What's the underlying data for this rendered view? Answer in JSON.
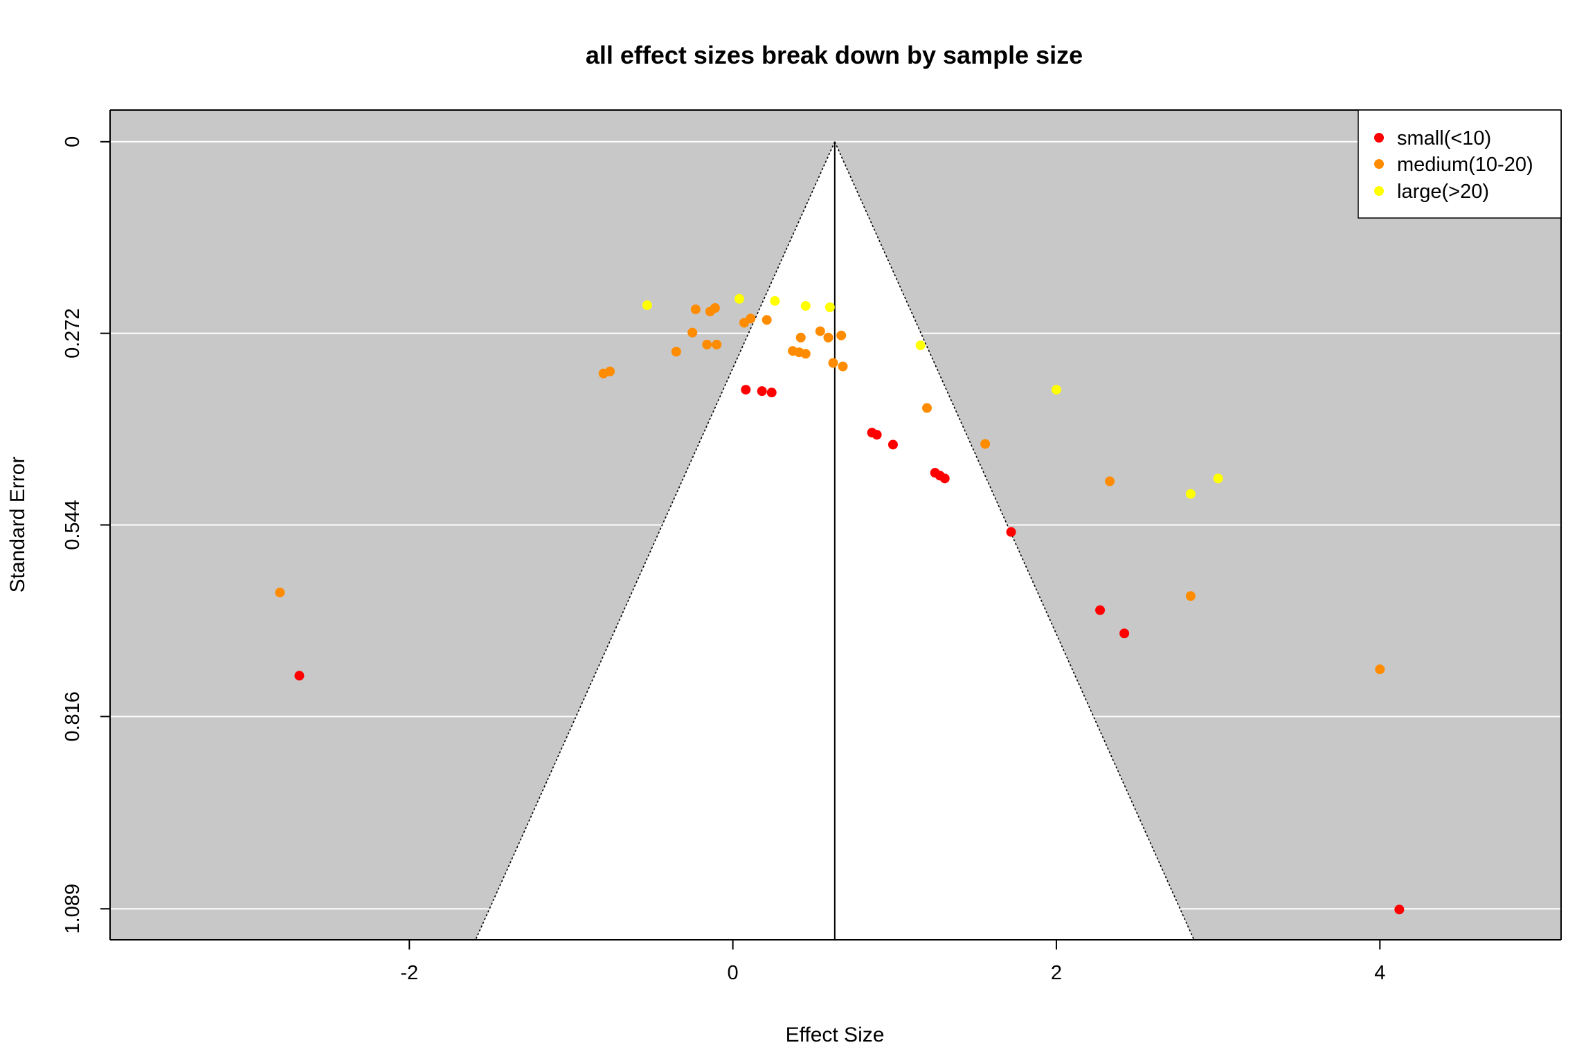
{
  "chart_data": {
    "type": "scatter",
    "subtype": "funnel-plot",
    "title": "all effect sizes break down by sample size",
    "xlabel": "Effect Size",
    "ylabel": "Standard Error",
    "xlim": [
      -3.85,
      5.12
    ],
    "ylim": [
      1.133,
      -0.045
    ],
    "y_reversed": true,
    "grid": "horizontal-white-lines",
    "background": "#c8c8c8",
    "funnel_fill": "#ffffff",
    "x_ticks": [
      -2,
      0,
      2,
      4
    ],
    "x_tick_labels": [
      "-2",
      "0",
      "2",
      "4"
    ],
    "y_ticks": [
      0,
      0.272,
      0.544,
      0.816,
      1.089
    ],
    "y_tick_labels": [
      "0",
      "0.272",
      "0.544",
      "0.816",
      "1.089"
    ],
    "funnel": {
      "center": 0.63,
      "z": 1.96
    },
    "legend_position": "top-right",
    "series": [
      {
        "name": "small(<10)",
        "color": "#ff0000",
        "points": [
          [
            0.08,
            0.352
          ],
          [
            0.18,
            0.354
          ],
          [
            0.24,
            0.356
          ],
          [
            0.86,
            0.413
          ],
          [
            0.89,
            0.416
          ],
          [
            0.99,
            0.43
          ],
          [
            1.25,
            0.47
          ],
          [
            1.28,
            0.474
          ],
          [
            1.31,
            0.478
          ],
          [
            1.72,
            0.554
          ],
          [
            2.27,
            0.665
          ],
          [
            2.42,
            0.698
          ],
          [
            -2.68,
            0.758
          ],
          [
            4.12,
            1.09
          ]
        ]
      },
      {
        "name": "medium(10-20)",
        "color": "#ff8c00",
        "points": [
          [
            -0.8,
            0.329
          ],
          [
            -0.76,
            0.326
          ],
          [
            -0.35,
            0.298
          ],
          [
            -0.25,
            0.271
          ],
          [
            -0.16,
            0.288
          ],
          [
            -0.1,
            0.288
          ],
          [
            -0.23,
            0.238
          ],
          [
            -0.14,
            0.241
          ],
          [
            -0.11,
            0.236
          ],
          [
            0.07,
            0.257
          ],
          [
            0.11,
            0.251
          ],
          [
            0.21,
            0.253
          ],
          [
            0.37,
            0.297
          ],
          [
            0.41,
            0.299
          ],
          [
            0.45,
            0.301
          ],
          [
            0.42,
            0.278
          ],
          [
            0.54,
            0.269
          ],
          [
            0.59,
            0.278
          ],
          [
            0.67,
            0.275
          ],
          [
            0.62,
            0.314
          ],
          [
            0.68,
            0.319
          ],
          [
            1.2,
            0.378
          ],
          [
            1.56,
            0.429
          ],
          [
            2.33,
            0.482
          ],
          [
            -2.8,
            0.64
          ],
          [
            2.83,
            0.645
          ],
          [
            4.0,
            0.749
          ]
        ]
      },
      {
        "name": "large(>20)",
        "color": "#ffff00",
        "points": [
          [
            -0.53,
            0.232
          ],
          [
            0.04,
            0.223
          ],
          [
            0.26,
            0.226
          ],
          [
            0.45,
            0.233
          ],
          [
            0.6,
            0.235
          ],
          [
            1.16,
            0.289
          ],
          [
            2.0,
            0.352
          ],
          [
            2.83,
            0.5
          ],
          [
            3.0,
            0.478
          ]
        ]
      }
    ]
  }
}
